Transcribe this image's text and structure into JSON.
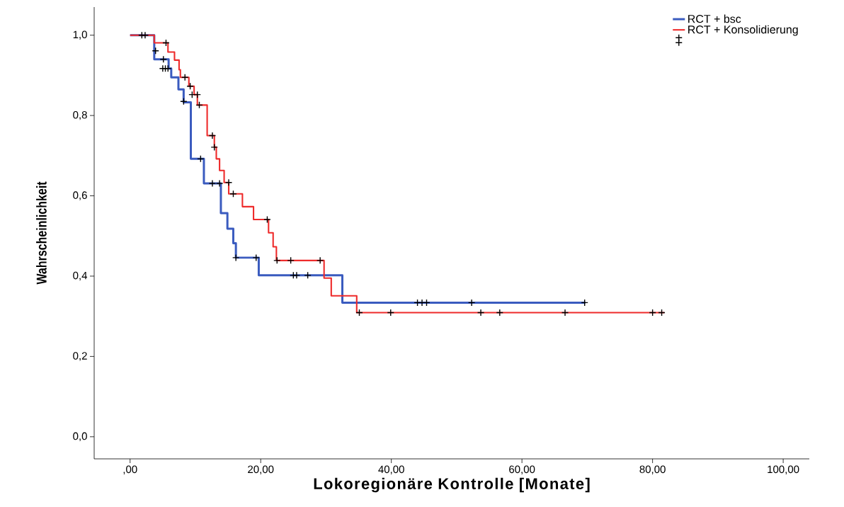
{
  "chart_data": {
    "type": "step",
    "xlabel": "Lokoregionäre Kontrolle  [Monate]",
    "ylabel": "Wahrscheinlichkeit",
    "xlim": [
      -5.5,
      104
    ],
    "ylim": [
      -0.055,
      1.07
    ],
    "xticks": [
      {
        "value": 0,
        "label": ",00"
      },
      {
        "value": 20,
        "label": "20,00"
      },
      {
        "value": 40,
        "label": "40,00"
      },
      {
        "value": 60,
        "label": "60,00"
      },
      {
        "value": 80,
        "label": "80,00"
      },
      {
        "value": 100,
        "label": "100,00"
      }
    ],
    "yticks": [
      {
        "value": 0,
        "label": "0,0"
      },
      {
        "value": 0.2,
        "label": "0,2"
      },
      {
        "value": 0.4,
        "label": "0,4"
      },
      {
        "value": 0.6,
        "label": "0,6"
      },
      {
        "value": 0.8,
        "label": "0,8"
      },
      {
        "value": 1.0,
        "label": "1,0"
      }
    ],
    "grid": false,
    "legend": "top right",
    "line_style": "solid",
    "series": [
      {
        "name": "RCT + bsc",
        "color": "#3a5bbf",
        "x": [
          0,
          3.7,
          5.9,
          6.3,
          7.4,
          8.2,
          9.3,
          11.3,
          13.9,
          14.9,
          15.8,
          16.2,
          19.7,
          32.5,
          69.7
        ],
        "values": [
          1.0,
          0.94,
          0.917,
          0.895,
          0.865,
          0.833,
          0.692,
          0.631,
          0.557,
          0.518,
          0.482,
          0.446,
          0.402,
          0.334,
          0.334
        ]
      },
      {
        "name": "RCT + Konsolidierung",
        "color": "#ee2b2b",
        "x": [
          0,
          3.7,
          5.8,
          6.8,
          7.5,
          7.7,
          9.0,
          9.8,
          10.3,
          11.8,
          12.9,
          13.2,
          13.7,
          14.4,
          15.1,
          17.2,
          18.9,
          21.2,
          21.9,
          22.4,
          29.7,
          30.8,
          34.7,
          81.8
        ],
        "values": [
          1.0,
          0.981,
          0.958,
          0.938,
          0.914,
          0.895,
          0.873,
          0.852,
          0.826,
          0.75,
          0.721,
          0.692,
          0.663,
          0.633,
          0.605,
          0.573,
          0.541,
          0.508,
          0.473,
          0.439,
          0.395,
          0.351,
          0.309,
          0.309
        ]
      },
      {
        "type": "scatter",
        "marker": "cross",
        "color": "#000000",
        "x": [
          1.8,
          2.3,
          3.9,
          5.1,
          5.0,
          5.4,
          5.8,
          8.2,
          10.8,
          12.6,
          13.7,
          16.2,
          19.3,
          25.0,
          25.5,
          27.2,
          44.0,
          44.7,
          45.4,
          52.3,
          69.6
        ],
        "values": [
          1.0,
          1.0,
          0.961,
          0.94,
          0.917,
          0.917,
          0.917,
          0.835,
          0.692,
          0.631,
          0.631,
          0.446,
          0.446,
          0.402,
          0.402,
          0.402,
          0.334,
          0.334,
          0.334,
          0.334,
          0.334
        ]
      },
      {
        "type": "scatter",
        "marker": "cross",
        "color": "#000000",
        "x": [
          5.5,
          8.4,
          9.2,
          9.5,
          10.3,
          10.6,
          12.6,
          12.9,
          15.1,
          15.8,
          21.0,
          22.5,
          24.6,
          29.1,
          35.1,
          39.9,
          53.7,
          56.6,
          66.6,
          80.0,
          81.4
        ],
        "values": [
          0.981,
          0.895,
          0.873,
          0.852,
          0.852,
          0.826,
          0.75,
          0.721,
          0.633,
          0.605,
          0.541,
          0.439,
          0.439,
          0.439,
          0.309,
          0.309,
          0.309,
          0.309,
          0.309,
          0.309,
          0.309
        ]
      }
    ]
  }
}
